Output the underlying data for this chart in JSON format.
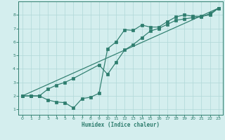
{
  "xlabel": "Humidex (Indice chaleur)",
  "bg_color": "#d4eeee",
  "grid_color": "#b0d8d8",
  "line_color": "#2e7d6e",
  "xlim": [
    -0.5,
    23.5
  ],
  "ylim": [
    0.6,
    9.0
  ],
  "yticks": [
    1,
    2,
    3,
    4,
    5,
    6,
    7,
    8
  ],
  "xticks": [
    0,
    1,
    2,
    3,
    4,
    5,
    6,
    7,
    8,
    9,
    10,
    11,
    12,
    13,
    14,
    15,
    16,
    17,
    18,
    19,
    20,
    21,
    22,
    23
  ],
  "line1_x": [
    0,
    1,
    2,
    3,
    4,
    5,
    6,
    7,
    8,
    9,
    10,
    11,
    12,
    13,
    14,
    15,
    16,
    17,
    18,
    19,
    20,
    21,
    22,
    23
  ],
  "line1_y": [
    2.0,
    2.0,
    2.0,
    1.7,
    1.55,
    1.5,
    1.1,
    1.8,
    1.9,
    2.2,
    5.5,
    6.0,
    6.9,
    6.85,
    7.25,
    7.1,
    7.1,
    7.5,
    7.85,
    8.0,
    7.9,
    7.9,
    8.0,
    8.5
  ],
  "line2_x": [
    0,
    1,
    2,
    3,
    4,
    5,
    6,
    9,
    10,
    11,
    12,
    13,
    14,
    15,
    16,
    17,
    18,
    19,
    20,
    21,
    22,
    23
  ],
  "line2_y": [
    2.0,
    2.0,
    2.0,
    2.5,
    2.8,
    3.0,
    3.3,
    4.3,
    3.6,
    4.5,
    5.4,
    5.8,
    6.3,
    6.8,
    7.0,
    7.3,
    7.6,
    7.7,
    7.8,
    7.85,
    8.1,
    8.5
  ],
  "line3_x": [
    0,
    23
  ],
  "line3_y": [
    2.0,
    8.5
  ]
}
